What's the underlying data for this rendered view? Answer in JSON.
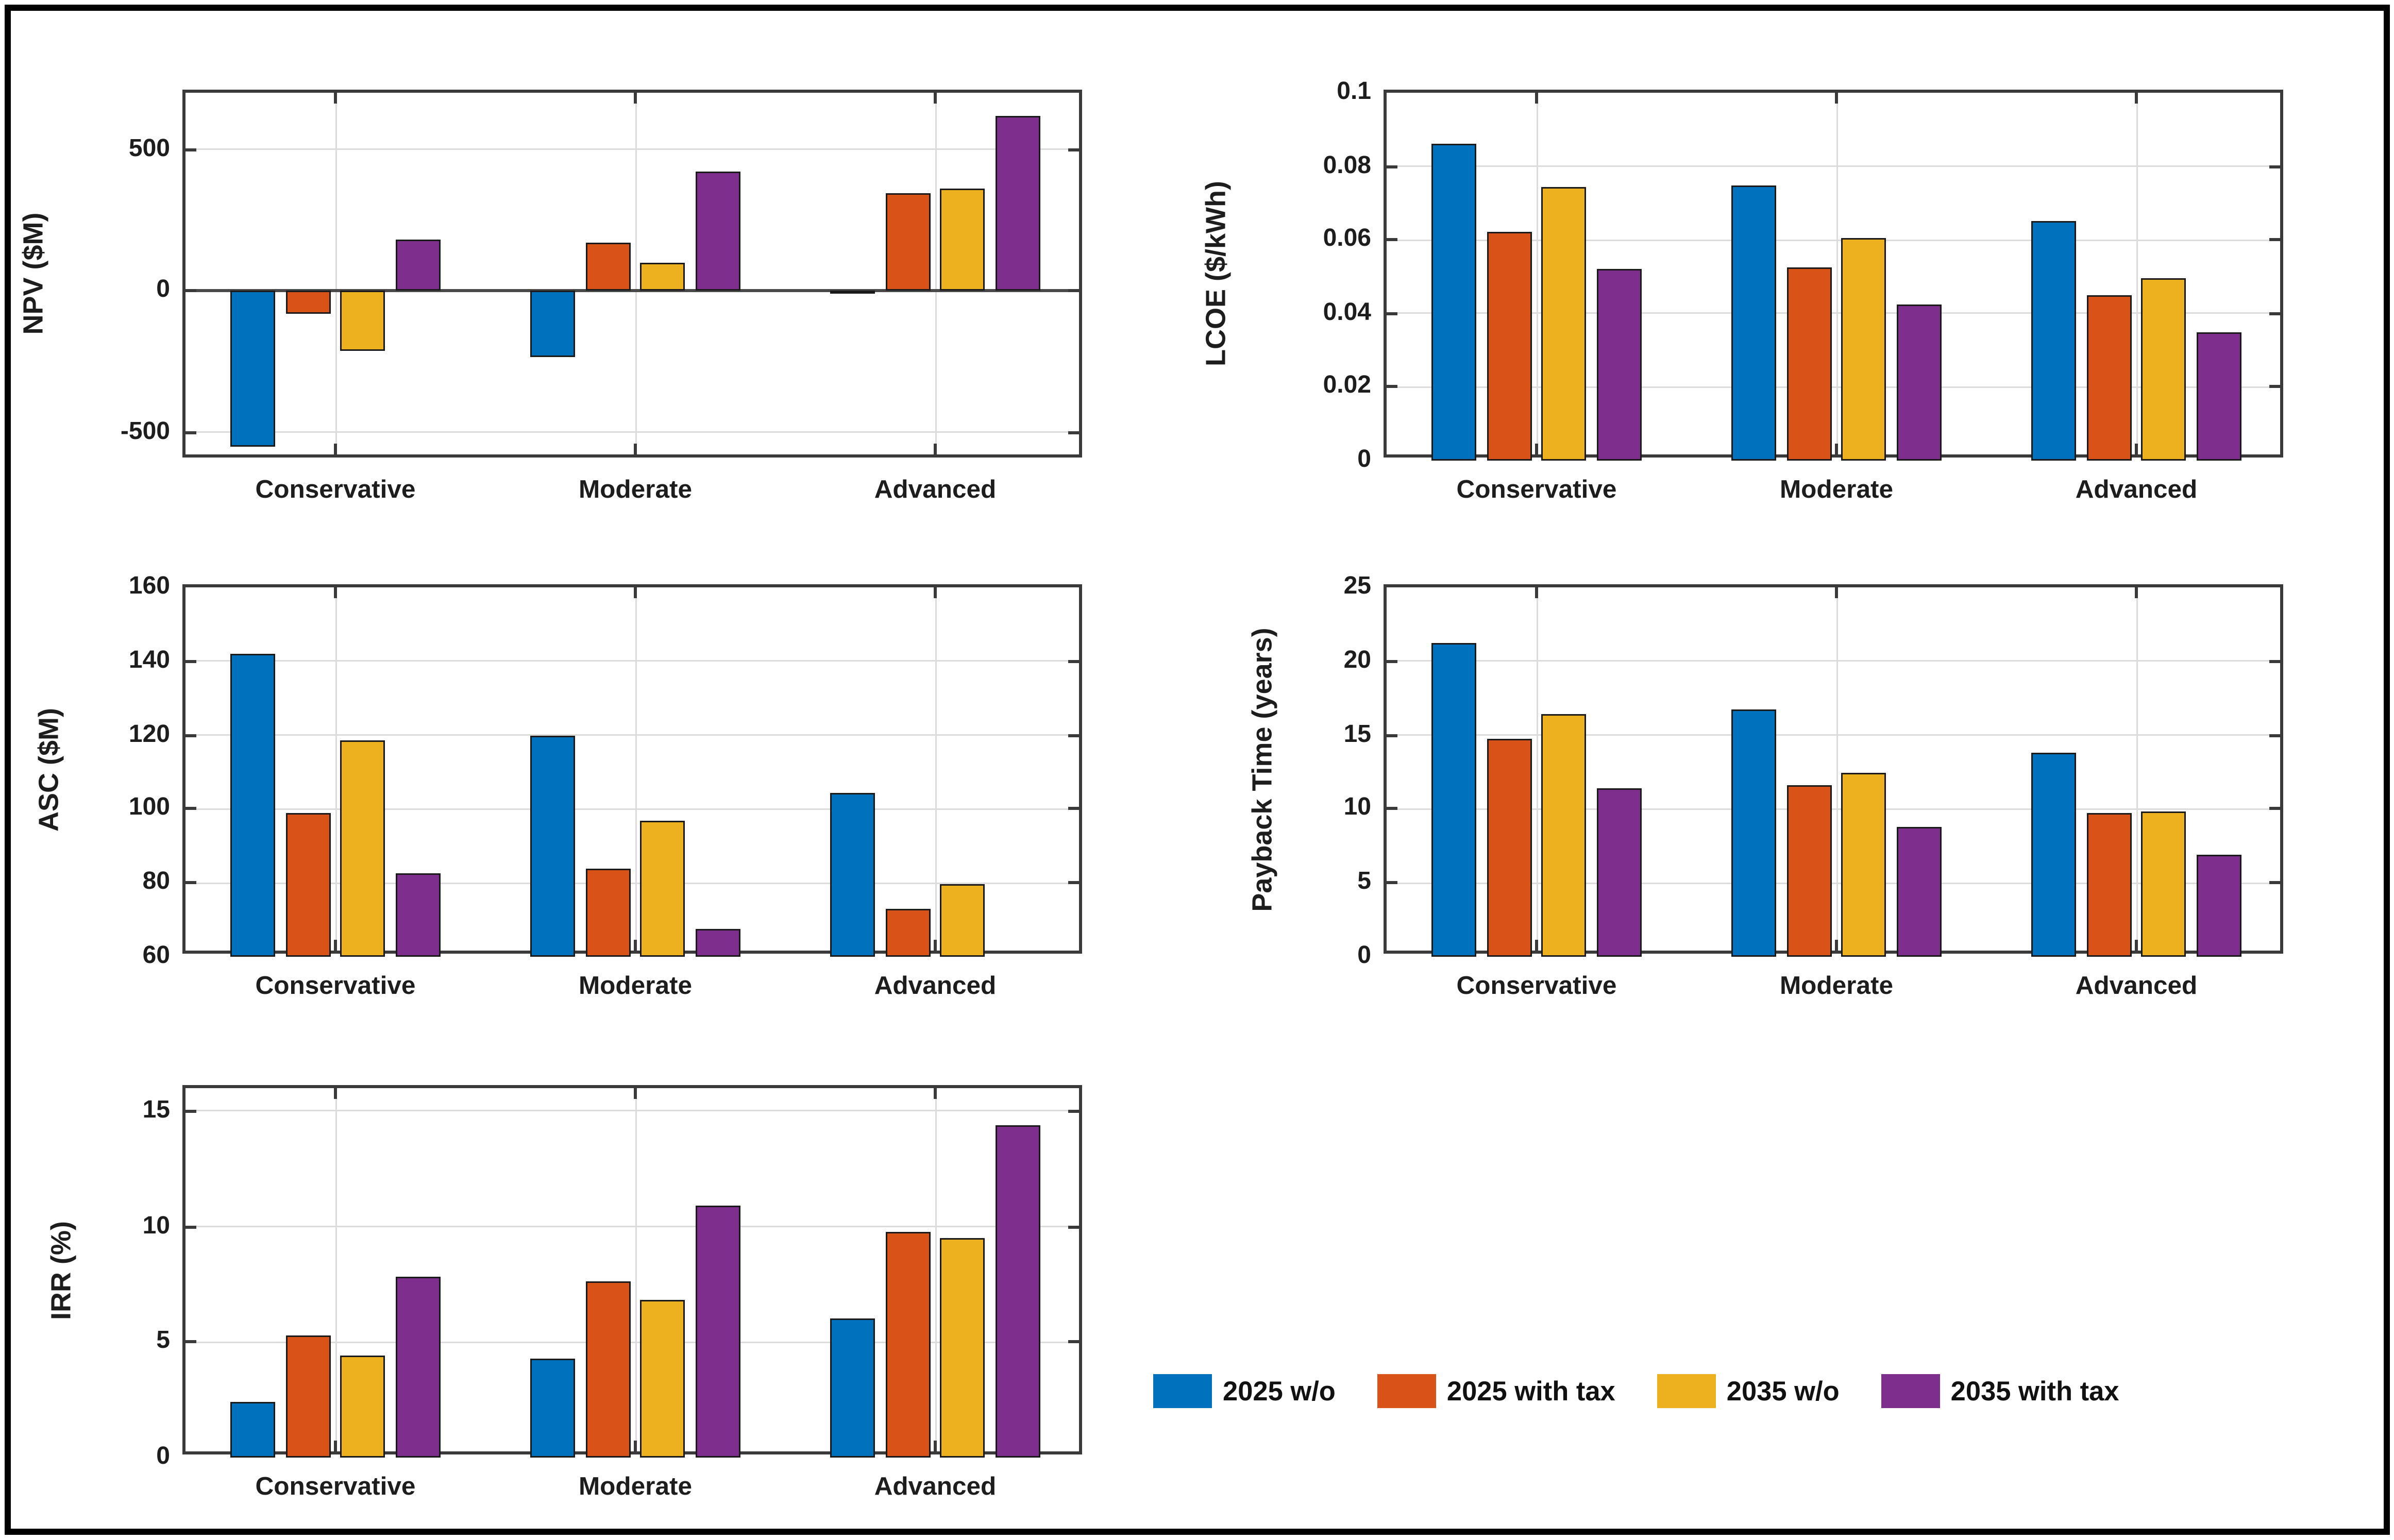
{
  "figure": {
    "background": "#FFFFFF",
    "border_color": "#000000"
  },
  "legend": {
    "position": "bottom-right",
    "items": [
      {
        "label": "2025 w/o",
        "color": "#0072BD"
      },
      {
        "label": "2025 with tax",
        "color": "#D95319"
      },
      {
        "label": "2035 w/o",
        "color": "#EDB120"
      },
      {
        "label": "2035 with tax",
        "color": "#7E2F8E"
      }
    ]
  },
  "chart_data": {
    "type": "bar",
    "layout": "grouped",
    "grid": true,
    "categories": [
      "Conservative",
      "Moderate",
      "Advanced"
    ],
    "series_names": [
      "2025 w/o",
      "2025 with tax",
      "2035 w/o",
      "2035 with tax"
    ],
    "series_colors": [
      "#0072BD",
      "#D95319",
      "#EDB120",
      "#7E2F8E"
    ],
    "charts": [
      {
        "id": "npv",
        "type": "bar",
        "title": "",
        "xlabel": "",
        "ylabel": "NPV ($M)",
        "ylim": [
          -600,
          700
        ],
        "yticks": [
          -500,
          0,
          500
        ],
        "series": [
          {
            "name": "2025 w/o",
            "values": [
              -550,
              -235,
              -5
            ]
          },
          {
            "name": "2025 with tax",
            "values": [
              -80,
              168,
              345
            ]
          },
          {
            "name": "2035 w/o",
            "values": [
              -212,
              98,
              360
            ]
          },
          {
            "name": "2035 with tax",
            "values": [
              180,
              420,
              620
            ]
          }
        ]
      },
      {
        "id": "lcoe",
        "type": "bar",
        "title": "",
        "xlabel": "",
        "ylabel": "LCOE ($/kWh)",
        "ylim": [
          0,
          0.1
        ],
        "yticks": [
          0,
          0.02,
          0.04,
          0.06,
          0.08,
          0.1
        ],
        "series": [
          {
            "name": "2025 w/o",
            "values": [
              0.086,
              0.075,
              0.065
            ]
          },
          {
            "name": "2025 with tax",
            "values": [
              0.062,
              0.0525,
              0.045
            ]
          },
          {
            "name": "2035 w/o",
            "values": [
              0.0745,
              0.0605,
              0.0495
            ]
          },
          {
            "name": "2035 with tax",
            "values": [
              0.052,
              0.0425,
              0.035
            ]
          }
        ]
      },
      {
        "id": "asc",
        "type": "bar",
        "title": "",
        "xlabel": "",
        "ylabel": "ASC ($M)",
        "ylim": [
          60,
          160
        ],
        "yticks": [
          60,
          80,
          100,
          120,
          140,
          160
        ],
        "series": [
          {
            "name": "2025 w/o",
            "values": [
              142,
              120,
              104.5
            ]
          },
          {
            "name": "2025 with tax",
            "values": [
              99,
              84,
              73
            ]
          },
          {
            "name": "2035 w/o",
            "values": [
              118.5,
              97,
              79.5
            ]
          },
          {
            "name": "2035 with tax",
            "values": [
              82.5,
              67.5,
              null
            ]
          }
        ],
        "note": "2035 with tax bar for Advanced is below the 60 axis minimum and not visible"
      },
      {
        "id": "payback",
        "type": "bar",
        "title": "",
        "xlabel": "",
        "ylabel": "Payback Time (years)",
        "ylim": [
          0,
          25
        ],
        "yticks": [
          0,
          5,
          10,
          15,
          20,
          25
        ],
        "series": [
          {
            "name": "2025 w/o",
            "values": [
              21.2,
              16.7,
              13.8
            ]
          },
          {
            "name": "2025 with tax",
            "values": [
              14.8,
              11.6,
              9.7
            ]
          },
          {
            "name": "2035 w/o",
            "values": [
              16.4,
              12.5,
              9.8
            ]
          },
          {
            "name": "2035 with tax",
            "values": [
              11.4,
              8.8,
              6.9
            ]
          }
        ]
      },
      {
        "id": "irr",
        "type": "bar",
        "title": "",
        "xlabel": "",
        "ylabel": "IRR (%)",
        "ylim": [
          0,
          16
        ],
        "yticks": [
          0,
          5,
          10,
          15
        ],
        "series": [
          {
            "name": "2025 w/o",
            "values": [
              2.4,
              4.3,
              6.0
            ]
          },
          {
            "name": "2025 with tax",
            "values": [
              5.3,
              7.6,
              9.8
            ]
          },
          {
            "name": "2035 w/o",
            "values": [
              4.45,
              6.8,
              9.5
            ]
          },
          {
            "name": "2035 with tax",
            "values": [
              7.8,
              10.9,
              14.4
            ]
          }
        ]
      }
    ]
  }
}
